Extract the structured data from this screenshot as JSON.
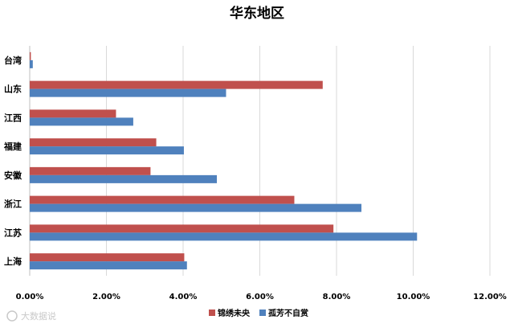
{
  "chart_data": {
    "type": "bar",
    "orientation": "horizontal",
    "title": "华东地区",
    "categories": [
      "台湾",
      "山东",
      "江西",
      "福建",
      "安徽",
      "浙江",
      "江苏",
      "上海"
    ],
    "series": [
      {
        "name": "锦绣未央",
        "color": "#c0504d",
        "values": [
          0.0003,
          0.0764,
          0.0225,
          0.033,
          0.0315,
          0.069,
          0.0792,
          0.0403
        ]
      },
      {
        "name": "孤芳不自赏",
        "color": "#4f81bd",
        "values": [
          0.0008,
          0.0512,
          0.027,
          0.0402,
          0.0488,
          0.0865,
          0.101,
          0.041
        ]
      }
    ],
    "xlim": [
      0,
      0.12
    ],
    "xticks": [
      "0.00%",
      "2.00%",
      "4.00%",
      "6.00%",
      "8.00%",
      "10.00%",
      "12.00%"
    ],
    "xlabel": "",
    "ylabel": "",
    "grid": "vertical",
    "legend_position": "bottom"
  },
  "watermark": {
    "text": "大数据说"
  }
}
